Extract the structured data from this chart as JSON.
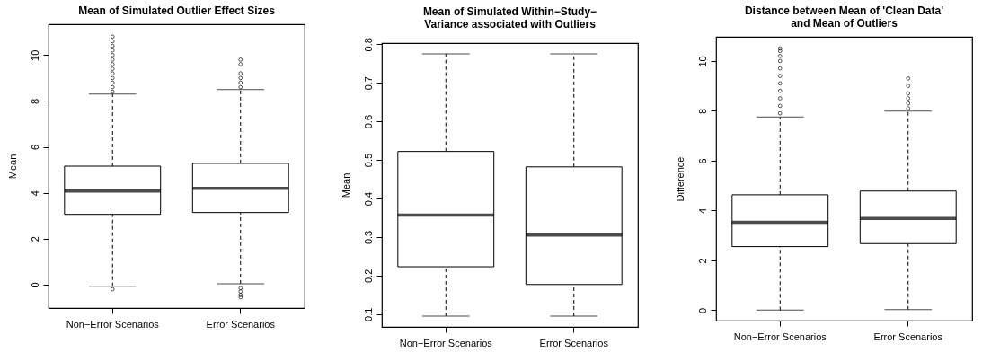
{
  "chart_data": [
    {
      "type": "box",
      "title": "Mean of Simulated Outlier Effect Sizes",
      "ylabel": "Mean",
      "categories": [
        "Non−Error Scenarios",
        "Error Scenarios"
      ],
      "ylim": [
        -1.02,
        11.34
      ],
      "yticks": [
        0,
        2,
        4,
        6,
        8,
        10
      ],
      "grid": false,
      "marker": "circle",
      "boxes": [
        {
          "low": -0.07,
          "q1": 3.06,
          "median": 4.07,
          "q3": 5.16,
          "high": 8.3,
          "outliers": [
            8.4,
            8.6,
            8.8,
            9.0,
            9.2,
            9.4,
            9.6,
            9.8,
            10.0,
            10.2,
            10.4,
            10.6,
            10.8,
            -0.2
          ]
        },
        {
          "low": 0.04,
          "q1": 3.14,
          "median": 4.19,
          "q3": 5.28,
          "high": 8.49,
          "outliers": [
            8.6,
            8.8,
            9.0,
            9.2,
            9.6,
            9.8,
            -0.15,
            -0.3,
            -0.45,
            -0.55
          ]
        }
      ]
    },
    {
      "type": "box",
      "title": "Mean of Simulated Within−Study−\nVariance associated with Outliers",
      "ylabel": "Mean",
      "categories": [
        "Non−Error Scenarios",
        "Error Scenarios"
      ],
      "ylim": [
        0.067,
        0.803
      ],
      "yticks": [
        0.1,
        0.2,
        0.3,
        0.4,
        0.5,
        0.6,
        0.7,
        0.8
      ],
      "grid": false,
      "marker": "circle",
      "boxes": [
        {
          "low": 0.095,
          "q1": 0.223,
          "median": 0.357,
          "q3": 0.522,
          "high": 0.775
        },
        {
          "low": 0.095,
          "q1": 0.177,
          "median": 0.305,
          "q3": 0.482,
          "high": 0.775
        }
      ]
    },
    {
      "type": "box",
      "title": "Distance between Mean of 'Clean Data'\nand Mean of Outliers",
      "ylabel": "Difference",
      "categories": [
        "Non−Error Scenarios",
        "Error Scenarios"
      ],
      "ylim": [
        -0.42,
        10.97
      ],
      "yticks": [
        0,
        2,
        4,
        6,
        8,
        10
      ],
      "grid": false,
      "marker": "circle",
      "boxes": [
        {
          "low": 0,
          "q1": 2.55,
          "median": 3.53,
          "q3": 4.63,
          "high": 7.75,
          "outliers": [
            7.9,
            8.2,
            8.5,
            8.8,
            9.1,
            9.4,
            9.7,
            10.0,
            10.2,
            10.4,
            10.5
          ]
        },
        {
          "low": 0.02,
          "q1": 2.67,
          "median": 3.68,
          "q3": 4.78,
          "high": 7.99,
          "outliers": [
            8.1,
            8.3,
            8.5,
            8.7,
            9.0,
            9.3
          ]
        }
      ]
    }
  ]
}
